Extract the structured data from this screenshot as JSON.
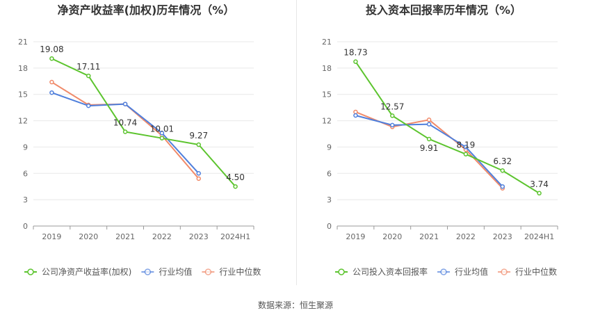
{
  "colors": {
    "company": "#5cc42e",
    "average": "#4f7fdc",
    "median": "#f08a6a",
    "grid": "#e8e8e8",
    "axis": "#999999",
    "tick_text": "#666666",
    "title": "#333333"
  },
  "footer": {
    "source": "数据来源：恒生聚源"
  },
  "chart_data": [
    {
      "type": "line",
      "title": "净资产收益率(加权)历年情况（%）",
      "categories": [
        "2019",
        "2020",
        "2021",
        "2022",
        "2023",
        "2024H1"
      ],
      "ylim": [
        0,
        21
      ],
      "yticks": [
        0,
        3,
        6,
        9,
        12,
        15,
        18,
        21
      ],
      "grid": true,
      "legend_position": "bottom-left",
      "series": [
        {
          "name": "公司净资产收益率(加权)",
          "color_key": "company",
          "labeled": true,
          "values": [
            19.08,
            17.11,
            10.74,
            10.01,
            9.27,
            4.5
          ],
          "labels": [
            "19.08",
            "17.11",
            "10.74",
            "10.01",
            "9.27",
            "4.50"
          ]
        },
        {
          "name": "行业均值",
          "color_key": "average",
          "values": [
            15.2,
            13.7,
            13.9,
            10.6,
            6.0,
            null
          ]
        },
        {
          "name": "行业中位数",
          "color_key": "median",
          "values": [
            16.4,
            13.8,
            13.9,
            10.3,
            5.4,
            null
          ]
        }
      ]
    },
    {
      "type": "line",
      "title": "投入资本回报率历年情况（%）",
      "categories": [
        "2019",
        "2020",
        "2021",
        "2022",
        "2023",
        "2024H1"
      ],
      "ylim": [
        0,
        21
      ],
      "yticks": [
        0,
        3,
        6,
        9,
        12,
        15,
        18,
        21
      ],
      "grid": true,
      "legend_position": "bottom-left",
      "series": [
        {
          "name": "公司投入资本回报率",
          "color_key": "company",
          "labeled": true,
          "values": [
            18.73,
            12.57,
            9.91,
            8.19,
            6.32,
            3.74
          ],
          "labels": [
            "18.73",
            "12.57",
            "9.91",
            "8.19",
            "6.32",
            "3.74"
          ]
        },
        {
          "name": "行业均值",
          "color_key": "average",
          "values": [
            12.6,
            11.5,
            11.6,
            9.0,
            4.5,
            null
          ]
        },
        {
          "name": "行业中位数",
          "color_key": "median",
          "values": [
            13.0,
            11.3,
            12.1,
            8.7,
            4.3,
            null
          ]
        }
      ]
    }
  ]
}
